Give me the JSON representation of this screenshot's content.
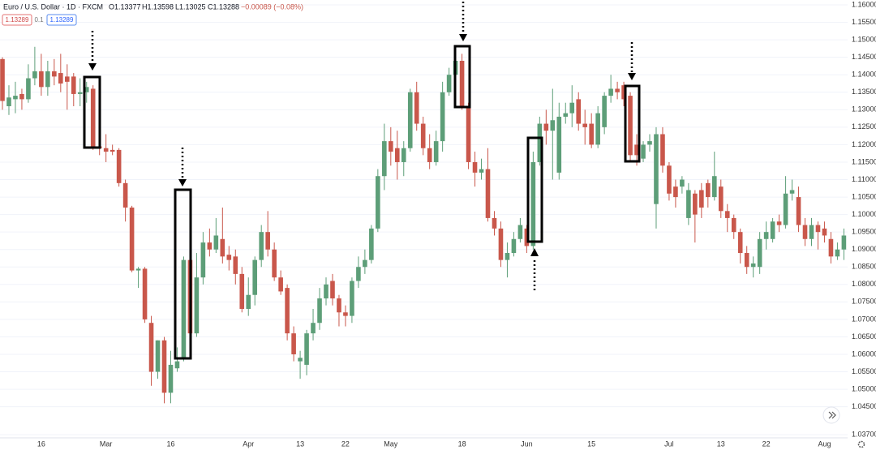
{
  "chart_data": {
    "type": "candlestick",
    "title": "Euro / U.S. Dollar · 1D · FXCM",
    "header_values": [
      "O1.13377",
      "H1.13598",
      "L1.13025",
      "C1.13288",
      "−0.00089 (−0.08%)"
    ],
    "price_badges": [
      "1.13289",
      "0.1",
      "1.13289"
    ],
    "up_color": "#5d9e78",
    "down_color": "#c9574b",
    "grid": true,
    "ylim": [
      1.0361,
      1.1614
    ],
    "yticks": [
      {
        "value": 1.16,
        "label": "1.16000"
      },
      {
        "value": 1.155,
        "label": "1.15500"
      },
      {
        "value": 1.15,
        "label": "1.15000"
      },
      {
        "value": 1.145,
        "label": "1.14500"
      },
      {
        "value": 1.14,
        "label": "1.14000"
      },
      {
        "value": 1.135,
        "label": "1.13500"
      },
      {
        "value": 1.13,
        "label": "1.13000"
      },
      {
        "value": 1.125,
        "label": "1.12500"
      },
      {
        "value": 1.12,
        "label": "1.12000"
      },
      {
        "value": 1.115,
        "label": "1.11500"
      },
      {
        "value": 1.11,
        "label": "1.11000"
      },
      {
        "value": 1.105,
        "label": "1.10500"
      },
      {
        "value": 1.1,
        "label": "1.10000"
      },
      {
        "value": 1.095,
        "label": "1.09500"
      },
      {
        "value": 1.09,
        "label": "1.09000"
      },
      {
        "value": 1.085,
        "label": "1.08500"
      },
      {
        "value": 1.08,
        "label": "1.08000"
      },
      {
        "value": 1.075,
        "label": "1.07500"
      },
      {
        "value": 1.07,
        "label": "1.07000"
      },
      {
        "value": 1.065,
        "label": "1.06500"
      },
      {
        "value": 1.06,
        "label": "1.06000"
      },
      {
        "value": 1.055,
        "label": "1.05500"
      },
      {
        "value": 1.05,
        "label": "1.05000"
      },
      {
        "value": 1.045,
        "label": "1.04500"
      },
      {
        "value": 1.037,
        "label": "1.03700"
      }
    ],
    "categories": [
      null,
      null,
      null,
      null,
      null,
      null,
      "16",
      null,
      null,
      null,
      null,
      null,
      null,
      null,
      null,
      null,
      "Mar",
      null,
      null,
      null,
      null,
      null,
      null,
      null,
      null,
      null,
      "16",
      null,
      null,
      null,
      null,
      null,
      null,
      null,
      null,
      null,
      null,
      null,
      "Apr",
      null,
      null,
      null,
      null,
      null,
      null,
      null,
      "13",
      null,
      null,
      null,
      null,
      null,
      null,
      "22",
      null,
      null,
      null,
      null,
      null,
      null,
      "May",
      null,
      null,
      null,
      null,
      null,
      null,
      null,
      null,
      null,
      null,
      "18",
      null,
      null,
      null,
      null,
      null,
      null,
      null,
      null,
      null,
      "Jun",
      null,
      null,
      null,
      null,
      null,
      null,
      null,
      null,
      null,
      "15",
      null,
      null,
      null,
      null,
      null,
      null,
      null,
      null,
      null,
      null,
      null,
      "Jul",
      null,
      null,
      null,
      null,
      null,
      null,
      null,
      "13",
      null,
      null,
      null,
      null,
      null,
      null,
      "22",
      null,
      null,
      null,
      null,
      null,
      null,
      null,
      null,
      "Aug",
      null,
      null,
      null
    ],
    "open": [
      1.1445,
      1.131,
      1.133,
      1.1345,
      1.133,
      1.139,
      1.141,
      1.1365,
      1.141,
      1.1405,
      1.1395,
      1.1395,
      1.1345,
      1.135,
      1.136,
      1.1195,
      1.119,
      1.1185,
      1.1185,
      1.109,
      1.102,
      1.084,
      1.0845,
      1.069,
      1.055,
      1.064,
      1.049,
      1.056,
      1.059,
      1.087,
      1.066,
      1.082,
      1.092,
      1.09,
      1.093,
      1.0885,
      1.088,
      1.083,
      1.073,
      1.077,
      1.087,
      1.095,
      1.09,
      1.082,
      1.079,
      1.066,
      1.058,
      1.057,
      1.066,
      1.069,
      1.076,
      1.081,
      1.076,
      1.072,
      1.071,
      1.081,
      1.085,
      1.087,
      1.096,
      1.111,
      1.121,
      1.119,
      1.115,
      1.119,
      1.135,
      1.126,
      1.119,
      1.115,
      1.121,
      1.135,
      1.14,
      1.144,
      1.131,
      1.115,
      1.112,
      1.113,
      1.099,
      1.096,
      1.087,
      1.089,
      1.093,
      1.096,
      1.091,
      1.115,
      1.126,
      1.124,
      1.112,
      1.128,
      1.129,
      1.133,
      1.126,
      1.126,
      1.12,
      1.125,
      1.134,
      1.136,
      1.137,
      1.134,
      1.12,
      1.116,
      1.12,
      1.103,
      1.123,
      1.114,
      1.108,
      1.108,
      1.099,
      1.106,
      1.107,
      1.109,
      1.105,
      1.108,
      1.101,
      1.099,
      1.095,
      1.089,
      1.085,
      1.085,
      1.093,
      1.093,
      1.098,
      1.097,
      1.106,
      1.105,
      1.097,
      1.093,
      1.097,
      1.096,
      1.093,
      1.088,
      1.09
    ],
    "high": [
      1.145,
      1.137,
      1.138,
      1.136,
      1.143,
      1.148,
      1.146,
      1.144,
      1.1445,
      1.146,
      1.143,
      1.1405,
      1.139,
      1.138,
      1.137,
      1.124,
      1.123,
      1.12,
      1.119,
      1.11,
      1.1025,
      1.085,
      1.085,
      1.071,
      1.064,
      1.065,
      1.061,
      1.062,
      1.088,
      1.09,
      1.089,
      1.095,
      1.096,
      1.099,
      1.102,
      1.091,
      1.09,
      1.085,
      1.082,
      1.088,
      1.097,
      1.101,
      1.092,
      1.084,
      1.08,
      1.068,
      1.061,
      1.067,
      1.073,
      1.079,
      1.082,
      1.083,
      1.077,
      1.074,
      1.082,
      1.088,
      1.09,
      1.097,
      1.113,
      1.126,
      1.125,
      1.124,
      1.121,
      1.136,
      1.138,
      1.128,
      1.123,
      1.124,
      1.138,
      1.142,
      1.146,
      1.146,
      1.132,
      1.118,
      1.116,
      1.119,
      1.101,
      1.098,
      1.092,
      1.095,
      1.099,
      1.097,
      1.118,
      1.128,
      1.13,
      1.136,
      1.132,
      1.132,
      1.137,
      1.135,
      1.13,
      1.129,
      1.131,
      1.135,
      1.14,
      1.138,
      1.138,
      1.135,
      1.123,
      1.121,
      1.123,
      1.125,
      1.125,
      1.115,
      1.11,
      1.111,
      1.109,
      1.107,
      1.109,
      1.11,
      1.118,
      1.11,
      1.103,
      1.1,
      1.096,
      1.091,
      1.088,
      1.095,
      1.098,
      1.099,
      1.1,
      1.111,
      1.11,
      1.108,
      1.099,
      1.099,
      1.098,
      1.098,
      1.095,
      1.092,
      1.096
    ],
    "low": [
      1.13,
      1.1285,
      1.129,
      1.13,
      1.132,
      1.137,
      1.134,
      1.134,
      1.137,
      1.135,
      1.13,
      1.131,
      1.131,
      1.132,
      1.1185,
      1.117,
      1.115,
      1.117,
      1.108,
      1.098,
      1.0835,
      1.079,
      1.069,
      1.051,
      1.053,
      1.046,
      1.046,
      1.055,
      1.058,
      1.064,
      1.065,
      1.08,
      1.088,
      1.089,
      1.086,
      1.084,
      1.08,
      1.072,
      1.071,
      1.074,
      1.085,
      1.088,
      1.081,
      1.077,
      1.064,
      1.058,
      1.053,
      1.054,
      1.064,
      1.067,
      1.074,
      1.074,
      1.068,
      1.068,
      1.069,
      1.079,
      1.083,
      1.086,
      1.095,
      1.107,
      1.114,
      1.11,
      1.111,
      1.118,
      1.124,
      1.117,
      1.113,
      1.114,
      1.118,
      1.134,
      1.139,
      1.13,
      1.113,
      1.108,
      1.11,
      1.098,
      1.094,
      1.085,
      1.082,
      1.088,
      1.092,
      1.089,
      1.09,
      1.114,
      1.12,
      1.11,
      1.11,
      1.126,
      1.125,
      1.124,
      1.12,
      1.119,
      1.119,
      1.123,
      1.132,
      1.133,
      1.131,
      1.115,
      1.114,
      1.115,
      1.118,
      1.096,
      1.112,
      1.104,
      1.102,
      1.106,
      1.097,
      1.092,
      1.099,
      1.102,
      1.104,
      1.099,
      1.095,
      1.093,
      1.086,
      1.083,
      1.082,
      1.083,
      1.09,
      1.092,
      1.095,
      1.096,
      1.104,
      1.095,
      1.091,
      1.091,
      1.09,
      1.092,
      1.086,
      1.087,
      1.087
    ],
    "close": [
      1.1325,
      1.1335,
      1.134,
      1.133,
      1.139,
      1.141,
      1.1365,
      1.141,
      1.1395,
      1.1375,
      1.138,
      1.1345,
      1.135,
      1.1365,
      1.1195,
      1.119,
      1.118,
      1.118,
      1.109,
      1.102,
      1.084,
      1.0845,
      1.07,
      1.055,
      1.064,
      1.049,
      1.057,
      1.058,
      1.087,
      1.066,
      1.082,
      1.092,
      1.09,
      1.094,
      1.088,
      1.087,
      1.083,
      1.073,
      1.077,
      1.087,
      1.095,
      1.09,
      1.082,
      1.078,
      1.066,
      1.06,
      1.059,
      1.066,
      1.069,
      1.076,
      1.08,
      1.076,
      1.072,
      1.071,
      1.081,
      1.085,
      1.087,
      1.096,
      1.111,
      1.121,
      1.118,
      1.115,
      1.119,
      1.135,
      1.126,
      1.119,
      1.115,
      1.121,
      1.135,
      1.14,
      1.144,
      1.131,
      1.115,
      1.112,
      1.113,
      1.099,
      1.096,
      1.087,
      1.089,
      1.093,
      1.097,
      1.091,
      1.115,
      1.126,
      1.124,
      1.127,
      1.128,
      1.129,
      1.132,
      1.126,
      1.125,
      1.12,
      1.129,
      1.134,
      1.136,
      1.135,
      1.133,
      1.117,
      1.117,
      1.12,
      1.121,
      1.123,
      1.114,
      1.106,
      1.105,
      1.11,
      1.107,
      1.1,
      1.102,
      1.105,
      1.111,
      1.101,
      1.099,
      1.095,
      1.089,
      1.085,
      1.086,
      1.093,
      1.095,
      1.098,
      1.097,
      1.106,
      1.107,
      1.097,
      1.093,
      1.097,
      1.095,
      1.094,
      1.088,
      1.09,
      1.094
    ]
  }
}
